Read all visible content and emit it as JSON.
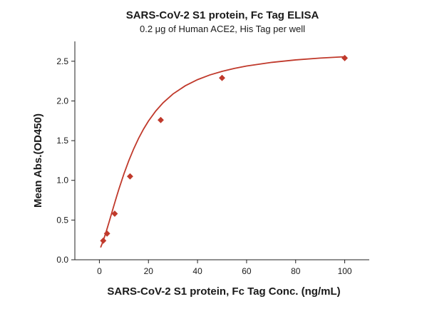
{
  "chart_data": {
    "type": "scatter",
    "title": "SARS-CoV-2 S1 protein, Fc Tag ELISA",
    "subtitle": "0.2 μg of Human ACE2, His Tag per well",
    "xlabel": "SARS-CoV-2 S1 protein, Fc Tag Conc. (ng/mL)",
    "ylabel": "Mean Abs.(OD450)",
    "xlim": [
      -10,
      110
    ],
    "ylim": [
      0,
      2.75
    ],
    "x_ticks": [
      0,
      20,
      40,
      60,
      80,
      100
    ],
    "y_ticks": [
      0.0,
      0.5,
      1.0,
      1.5,
      2.0,
      2.5
    ],
    "x_tick_labels": [
      "0",
      "20",
      "40",
      "60",
      "80",
      "100"
    ],
    "y_tick_labels": [
      "0.0",
      "0.5",
      "1.0",
      "1.5",
      "2.0",
      "2.5"
    ],
    "grid": false,
    "points": {
      "x": [
        1.5625,
        3.125,
        6.25,
        12.5,
        25,
        50,
        100
      ],
      "y": [
        0.24,
        0.33,
        0.58,
        1.05,
        1.76,
        2.29,
        2.54
      ]
    },
    "fit_curve": {
      "type": "four-parameter logistic",
      "x": [
        0.5,
        1,
        2,
        3,
        4,
        5,
        6,
        7,
        8,
        10,
        12,
        14,
        16,
        18,
        20,
        23,
        26,
        30,
        35,
        40,
        45,
        50,
        55,
        60,
        70,
        80,
        90,
        100
      ],
      "y": [
        0.155,
        0.193,
        0.28,
        0.377,
        0.48,
        0.586,
        0.691,
        0.794,
        0.894,
        1.081,
        1.249,
        1.398,
        1.53,
        1.646,
        1.747,
        1.874,
        1.978,
        2.088,
        2.191,
        2.268,
        2.327,
        2.373,
        2.41,
        2.44,
        2.485,
        2.517,
        2.54,
        2.557
      ]
    },
    "colors": {
      "series": "#c0392b",
      "axis": "#222222"
    }
  }
}
